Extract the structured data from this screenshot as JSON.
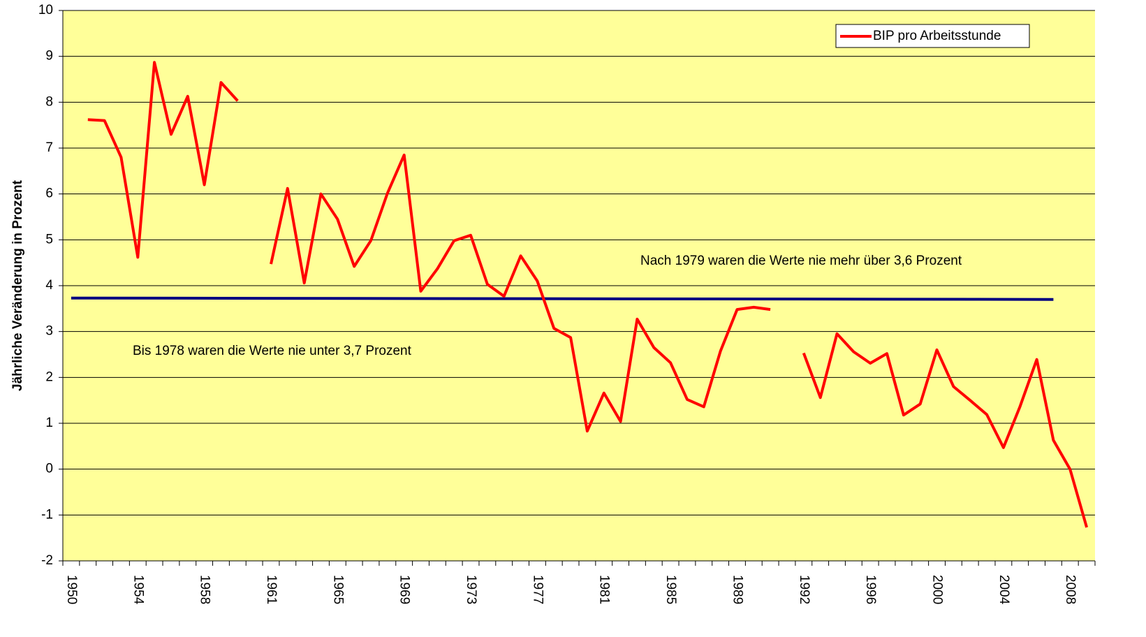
{
  "chart_data": {
    "type": "line",
    "y_label": "Jährliche Veränderung in Prozent",
    "categories": [
      "1950",
      null,
      null,
      null,
      "1954",
      null,
      null,
      null,
      "1958",
      null,
      null,
      null,
      "1961",
      null,
      null,
      null,
      "1965",
      null,
      null,
      null,
      "1969",
      null,
      null,
      null,
      "1973",
      null,
      null,
      null,
      "1977",
      null,
      null,
      null,
      "1981",
      null,
      null,
      null,
      "1985",
      null,
      null,
      null,
      "1989",
      null,
      null,
      null,
      "1992",
      null,
      null,
      null,
      "1996",
      null,
      null,
      null,
      "2000",
      null,
      null,
      null,
      "2004",
      null,
      null,
      null,
      "2008",
      null
    ],
    "series": [
      {
        "name": "BIP pro Arbeitsstunde",
        "color": "#ff0000",
        "values": [
          null,
          7.62,
          7.6,
          6.8,
          4.62,
          8.87,
          7.3,
          8.13,
          6.2,
          8.43,
          8.03,
          null,
          4.47,
          6.12,
          4.06,
          6.0,
          5.45,
          4.42,
          4.98,
          6.02,
          6.85,
          3.88,
          4.37,
          4.98,
          5.1,
          4.03,
          3.77,
          4.65,
          4.1,
          3.07,
          2.87,
          0.83,
          1.66,
          1.04,
          3.27,
          2.65,
          2.32,
          1.52,
          1.36,
          2.57,
          3.48,
          3.53,
          3.48,
          null,
          2.53,
          1.56,
          2.95,
          2.56,
          2.31,
          2.52,
          1.18,
          1.42,
          2.6,
          1.8,
          1.5,
          1.19,
          0.47,
          1.37,
          2.39,
          0.63,
          0.0,
          -1.27
        ]
      }
    ],
    "reference_line": {
      "color": "#000080",
      "values": [
        3.73,
        null,
        null,
        null,
        null,
        null,
        null,
        null,
        null,
        null,
        null,
        null,
        null,
        null,
        null,
        null,
        null,
        null,
        null,
        null,
        null,
        null,
        null,
        null,
        null,
        null,
        null,
        null,
        null,
        null,
        null,
        null,
        null,
        null,
        null,
        null,
        null,
        null,
        null,
        null,
        null,
        null,
        null,
        null,
        null,
        null,
        null,
        null,
        null,
        null,
        null,
        null,
        null,
        null,
        null,
        null,
        null,
        null,
        null,
        3.7,
        null,
        null
      ]
    },
    "annotations": [
      "Nach 1979 waren die Werte nie mehr über 3,6 Prozent",
      "Bis 1978 waren die Werte nie unter 3,7 Prozent"
    ],
    "ylim": [
      -2,
      10
    ],
    "yticks": [
      -2,
      -1,
      0,
      1,
      2,
      3,
      4,
      5,
      6,
      7,
      8,
      9,
      10
    ],
    "grid": true,
    "legend": "upper right",
    "plot_background": "#ffff99"
  }
}
